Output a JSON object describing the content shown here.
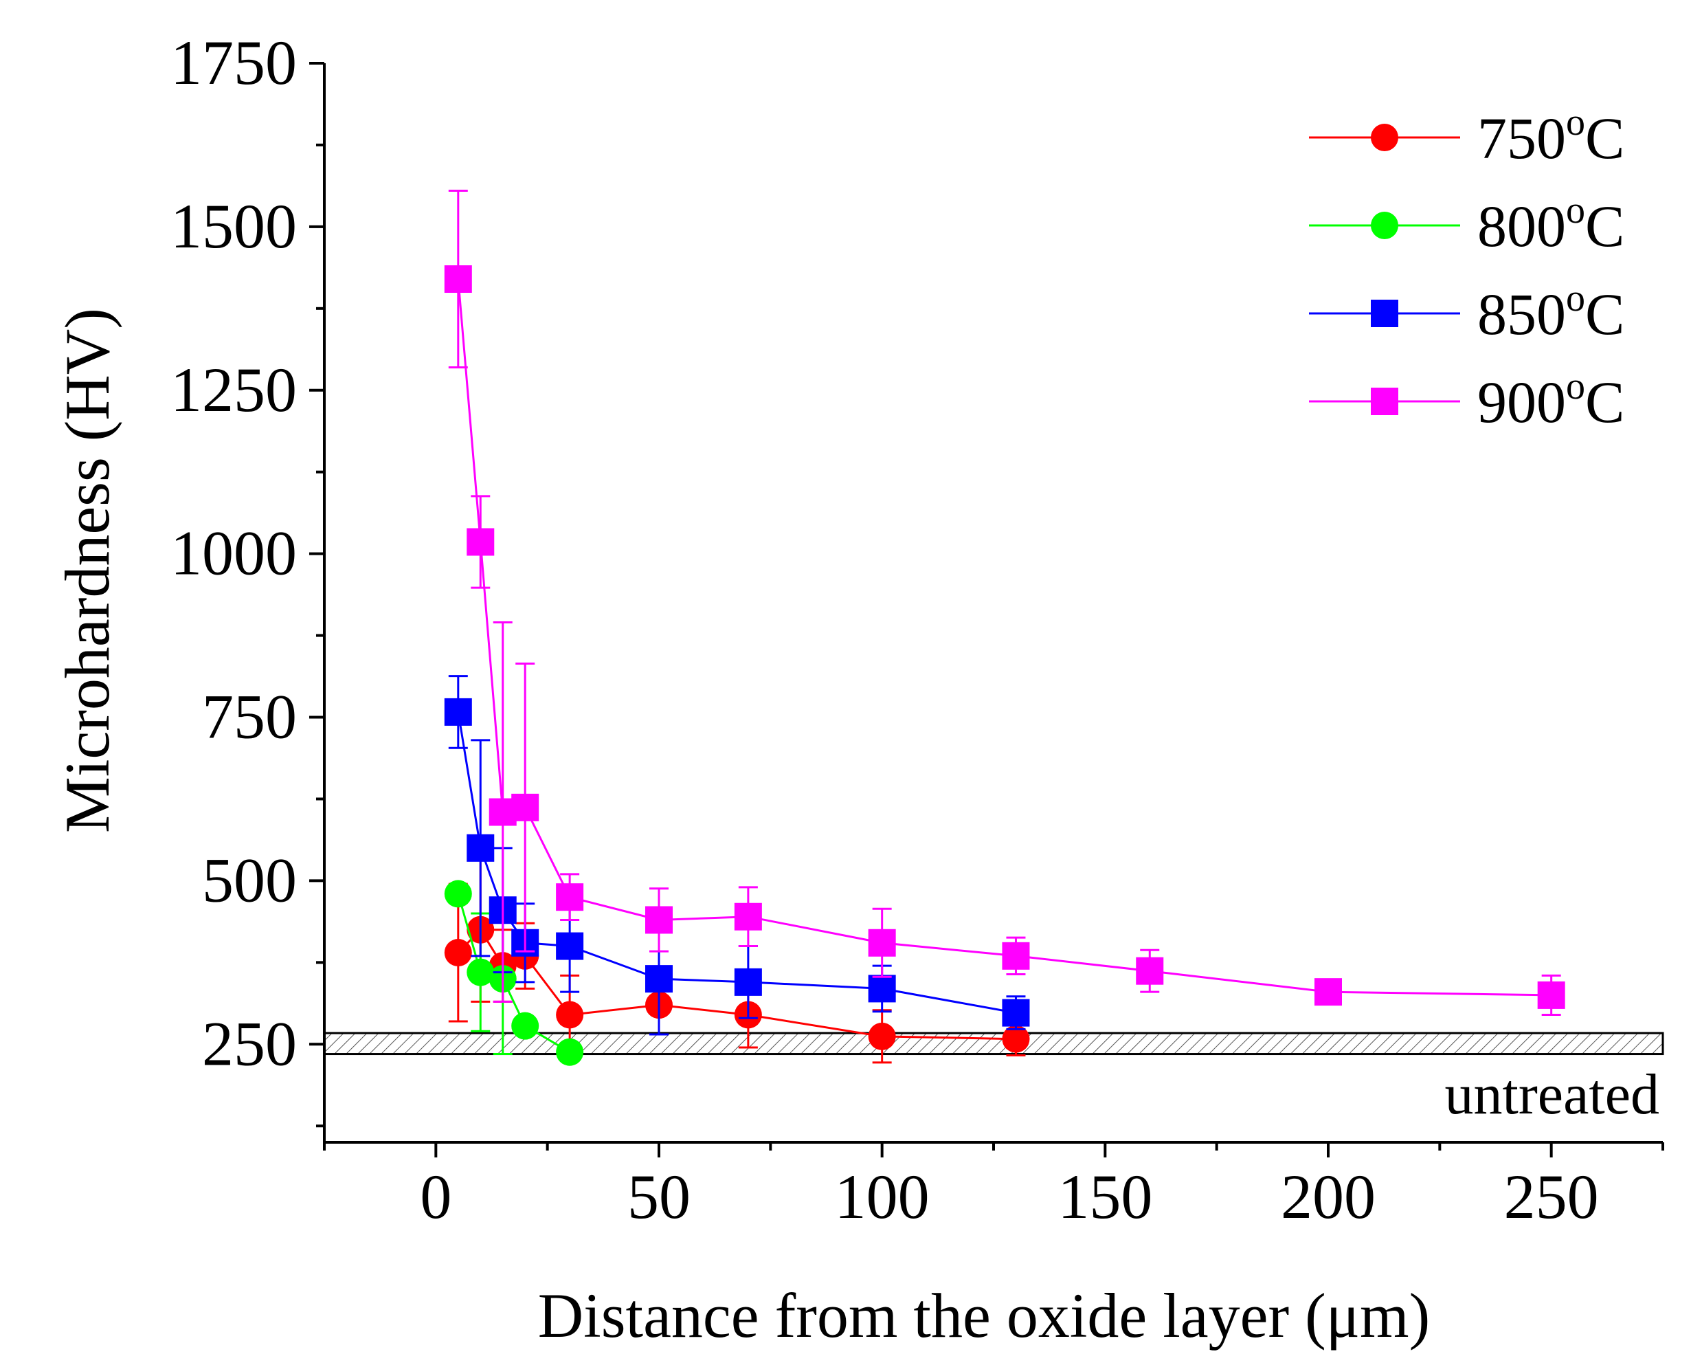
{
  "chart_data": {
    "type": "line",
    "title": "",
    "xlabel": "Distance from the oxide layer (μm)",
    "ylabel": "Microhardness (HV)",
    "xlim": [
      -25,
      275
    ],
    "ylim": [
      100,
      1750
    ],
    "xticks": [
      0,
      50,
      100,
      150,
      200,
      250
    ],
    "yticks": [
      250,
      500,
      750,
      1000,
      1250,
      1500,
      1750
    ],
    "x_tick_labels": [
      "0",
      "50",
      "100",
      "150",
      "200",
      "250"
    ],
    "y_tick_labels": [
      "250",
      "500",
      "750",
      "1000",
      "1250",
      "1500",
      "1750"
    ],
    "legend_position": "top-right",
    "series": [
      {
        "name": "750°C",
        "legend_base": "750",
        "legend_sup": "o",
        "legend_unit": "C",
        "color": "#ff0000",
        "marker": "circle",
        "x": [
          5,
          10,
          15,
          20,
          30,
          50,
          70,
          100,
          130
        ],
        "y": [
          390,
          425,
          370,
          385,
          295,
          310,
          295,
          262,
          258
        ],
        "err": [
          105,
          110,
          55,
          50,
          60,
          45,
          50,
          40,
          25
        ]
      },
      {
        "name": "800°C",
        "legend_base": "800",
        "legend_sup": "o",
        "legend_unit": "C",
        "color": "#00ff00",
        "marker": "circle",
        "x": [
          5,
          10,
          15,
          20,
          30
        ],
        "y": [
          480,
          360,
          350,
          278,
          238
        ],
        "err": [
          0,
          90,
          115,
          0,
          0
        ]
      },
      {
        "name": "850°C",
        "legend_base": "850",
        "legend_sup": "o",
        "legend_unit": "C",
        "color": "#0000ff",
        "marker": "square",
        "x": [
          5,
          10,
          15,
          20,
          30,
          50,
          70,
          100,
          130
        ],
        "y": [
          758,
          550,
          455,
          405,
          400,
          350,
          345,
          335,
          298
        ],
        "err": [
          55,
          165,
          95,
          60,
          70,
          85,
          55,
          35,
          25
        ]
      },
      {
        "name": "900°C",
        "legend_base": "900",
        "legend_sup": "o",
        "legend_unit": "C",
        "color": "#ff00ff",
        "marker": "square",
        "x": [
          5,
          10,
          15,
          20,
          30,
          50,
          70,
          100,
          130,
          160,
          200,
          250
        ],
        "y": [
          1420,
          1018,
          605,
          612,
          475,
          440,
          445,
          405,
          385,
          362,
          330,
          325
        ],
        "err": [
          135,
          70,
          290,
          220,
          35,
          48,
          45,
          52,
          28,
          32,
          10,
          30
        ]
      }
    ],
    "reference_band": {
      "label": "untreated",
      "y_range": [
        235,
        267
      ]
    }
  }
}
